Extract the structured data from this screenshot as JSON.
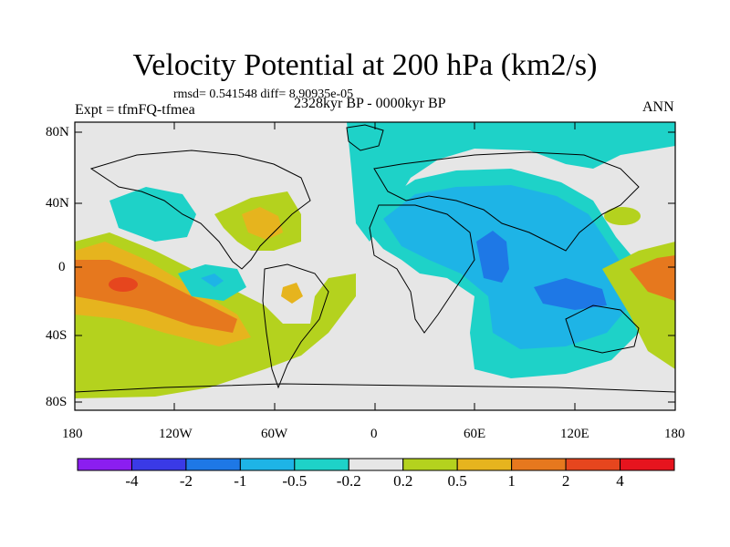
{
  "title": "Velocity Potential at 200 hPa (km2/s)",
  "stats": "rmsd= 0.541548 diff= 8.90935e-05",
  "experiment": "Expt = tfmFQ-tfmea",
  "period": "2328kyr BP - 0000kyr BP",
  "season": "ANN",
  "lat_ticks": [
    "80N",
    "40N",
    "0",
    "40S",
    "80S"
  ],
  "lon_ticks": [
    "180",
    "120W",
    "60W",
    "0",
    "60E",
    "120E",
    "180"
  ],
  "colorbar": {
    "labels": [
      "-4",
      "-2",
      "-1",
      "-0.5",
      "-0.2",
      "0.2",
      "0.5",
      "1",
      "2",
      "4"
    ],
    "colors": [
      "#8b1ef0",
      "#3a3ae6",
      "#1e78e6",
      "#1eb4e6",
      "#1ed2c8",
      "#e6e6e6",
      "#b4d21e",
      "#e6b41e",
      "#e6781e",
      "#e6461e",
      "#e6141e"
    ]
  }
}
